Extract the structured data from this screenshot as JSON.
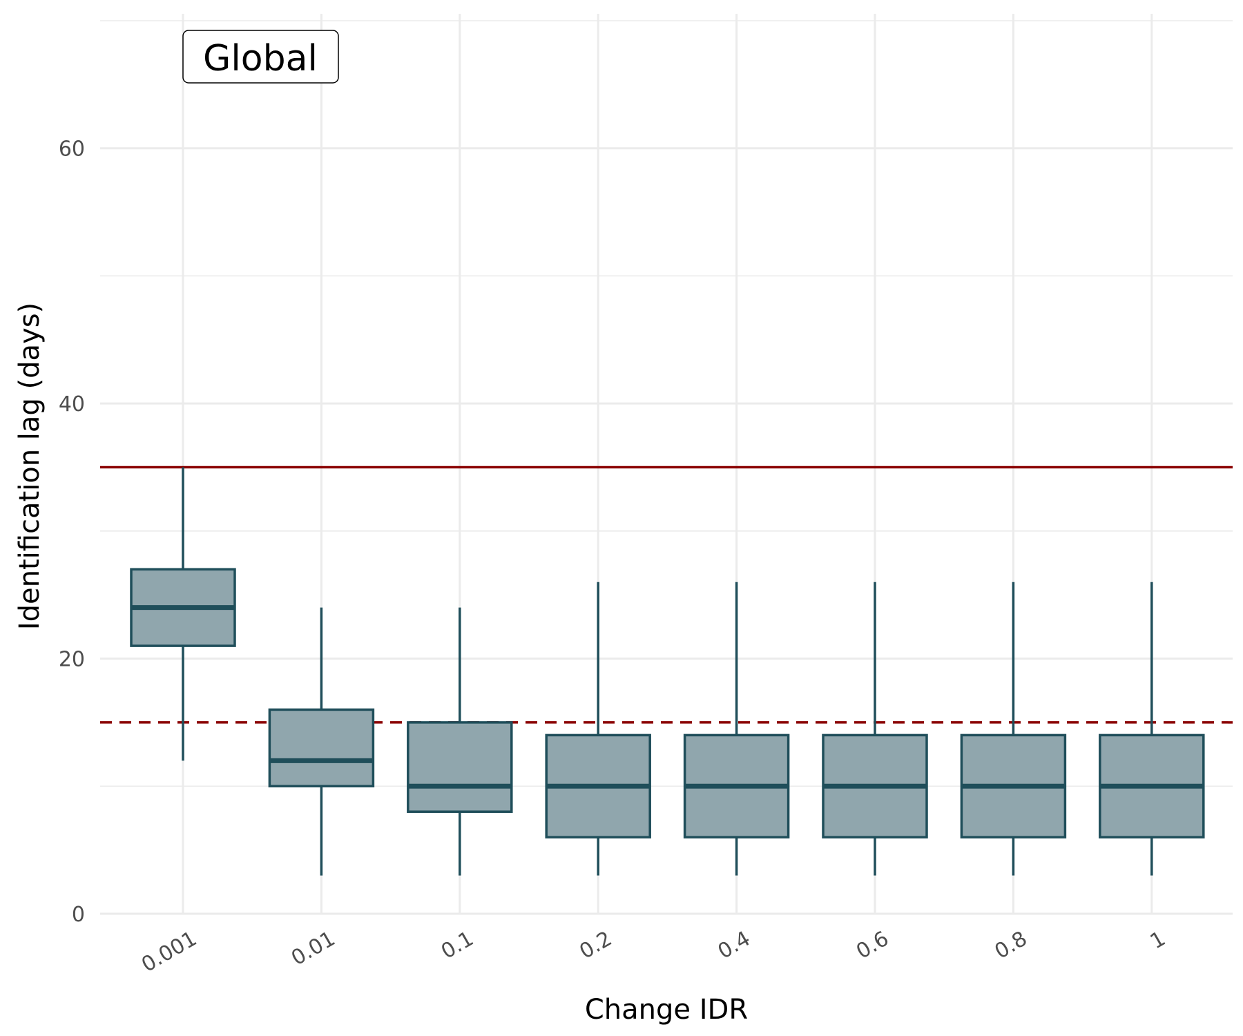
{
  "chart_data": {
    "type": "boxplot",
    "xlabel": "Change IDR",
    "ylabel": "Identification lag (days)",
    "panel_label": "Global",
    "ylim": [
      0,
      70
    ],
    "y_ticks": [
      0,
      20,
      40,
      60
    ],
    "categories": [
      "0.001",
      "0.01",
      "0.1",
      "0.2",
      "0.4",
      "0.6",
      "0.8",
      "1"
    ],
    "boxes": [
      {
        "category": "0.001",
        "whisker_low": 12,
        "q1": 21,
        "median": 24,
        "q3": 27,
        "whisker_high": 35
      },
      {
        "category": "0.01",
        "whisker_low": 3,
        "q1": 10,
        "median": 12,
        "q3": 16,
        "whisker_high": 24
      },
      {
        "category": "0.1",
        "whisker_low": 3,
        "q1": 8,
        "median": 10,
        "q3": 15,
        "whisker_high": 24
      },
      {
        "category": "0.2",
        "whisker_low": 3,
        "q1": 6,
        "median": 10,
        "q3": 14,
        "whisker_high": 26
      },
      {
        "category": "0.4",
        "whisker_low": 3,
        "q1": 6,
        "median": 10,
        "q3": 14,
        "whisker_high": 26
      },
      {
        "category": "0.6",
        "whisker_low": 3,
        "q1": 6,
        "median": 10,
        "q3": 14,
        "whisker_high": 26
      },
      {
        "category": "0.8",
        "whisker_low": 3,
        "q1": 6,
        "median": 10,
        "q3": 14,
        "whisker_high": 26
      },
      {
        "category": "1",
        "whisker_low": 3,
        "q1": 6,
        "median": 10,
        "q3": 14,
        "whisker_high": 26
      }
    ],
    "reference_lines": [
      {
        "value": 35,
        "style": "solid",
        "color": "#8b0000"
      },
      {
        "value": 15,
        "style": "dashed",
        "color": "#8b0000"
      }
    ],
    "grid": true,
    "colors": {
      "box_fill": "#90a6ad",
      "box_stroke": "#1f4e5a",
      "grid": "#ebebeb"
    }
  }
}
